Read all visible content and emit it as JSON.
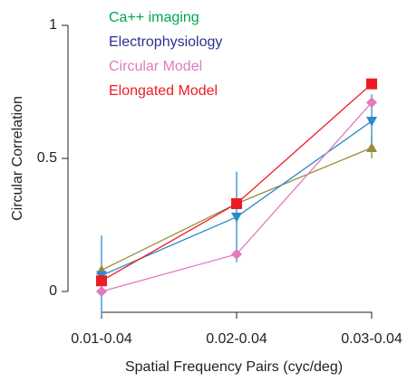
{
  "chart_data": {
    "type": "line",
    "x_label": "Spatial Frequency Pairs (cyc/deg)",
    "y_label": "Circular Correlation",
    "categories": [
      "0.01-0.04",
      "0.02-0.04",
      "0.03-0.04"
    ],
    "ylim": [
      0,
      1
    ],
    "yticks": [
      0,
      0.5,
      1
    ],
    "series": [
      {
        "name": "Ca++ imaging",
        "color": "#9a8c3c",
        "label_color": "#00a651",
        "marker": "triangle-up",
        "values": [
          0.08,
          0.33,
          0.54
        ],
        "errors": [
          null,
          null,
          0.04
        ]
      },
      {
        "name": "Electrophysiology",
        "color": "#2b8acb",
        "label_color": "#2e3192",
        "marker": "triangle-down",
        "values": [
          0.06,
          0.28,
          0.64
        ],
        "errors": [
          0.15,
          0.17,
          0.1
        ]
      },
      {
        "name": "Circular Model",
        "color": "#e07bc0",
        "label_color": "#e07bc0",
        "marker": "diamond",
        "values": [
          0,
          0.14,
          0.71
        ],
        "errors": [
          null,
          null,
          null
        ]
      },
      {
        "name": "Elongated Model",
        "color": "#ed1c24",
        "label_color": "#ed1c24",
        "marker": "square",
        "values": [
          0.04,
          0.33,
          0.78
        ],
        "errors": [
          null,
          null,
          null
        ]
      }
    ]
  }
}
